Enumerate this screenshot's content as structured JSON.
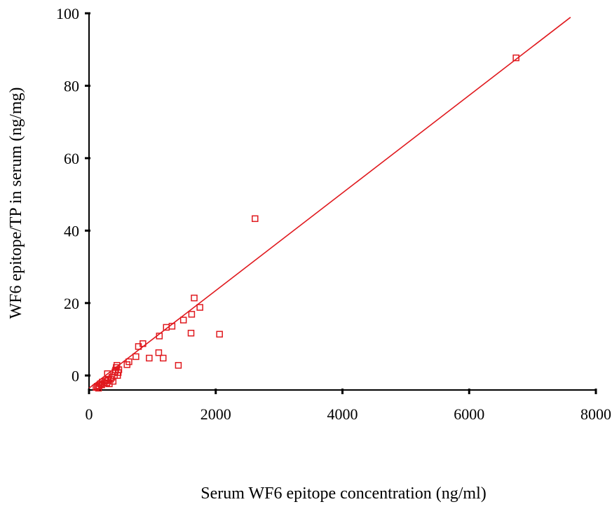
{
  "chart_data": {
    "type": "scatter",
    "title": "",
    "xlabel": "Serum WF6 epitope concentration (ng/ml)",
    "ylabel": "WF6 epitope/TP in serum (ng/mg)",
    "xlim": [
      0,
      8000
    ],
    "ylim": [
      -4,
      100
    ],
    "xticks": [
      0,
      2000,
      4000,
      6000,
      8000
    ],
    "yticks": [
      0,
      20,
      40,
      60,
      80,
      100
    ],
    "grid": false,
    "legend": "none",
    "marker": "open-square",
    "color": "#e0191e",
    "points": [
      {
        "x": 110,
        "y": -3.3
      },
      {
        "x": 130,
        "y": -3.0
      },
      {
        "x": 150,
        "y": -3.5
      },
      {
        "x": 160,
        "y": -2.8
      },
      {
        "x": 180,
        "y": -2.3
      },
      {
        "x": 200,
        "y": -2.6
      },
      {
        "x": 210,
        "y": -1.8
      },
      {
        "x": 240,
        "y": -2.2
      },
      {
        "x": 260,
        "y": -1.5
      },
      {
        "x": 280,
        "y": -2.0
      },
      {
        "x": 290,
        "y": 0.5
      },
      {
        "x": 300,
        "y": -1.3
      },
      {
        "x": 320,
        "y": -2.3
      },
      {
        "x": 340,
        "y": -1.0
      },
      {
        "x": 360,
        "y": -0.5
      },
      {
        "x": 380,
        "y": -1.6
      },
      {
        "x": 400,
        "y": 0.0
      },
      {
        "x": 410,
        "y": 1.0
      },
      {
        "x": 420,
        "y": 1.5
      },
      {
        "x": 430,
        "y": 2.2
      },
      {
        "x": 440,
        "y": 2.8
      },
      {
        "x": 450,
        "y": 0.0
      },
      {
        "x": 460,
        "y": 0.8
      },
      {
        "x": 470,
        "y": 1.6
      },
      {
        "x": 600,
        "y": 3.0
      },
      {
        "x": 630,
        "y": 3.8
      },
      {
        "x": 740,
        "y": 5.2
      },
      {
        "x": 780,
        "y": 8.0
      },
      {
        "x": 850,
        "y": 8.8
      },
      {
        "x": 950,
        "y": 4.8
      },
      {
        "x": 1100,
        "y": 6.3
      },
      {
        "x": 1110,
        "y": 10.9
      },
      {
        "x": 1170,
        "y": 4.8
      },
      {
        "x": 1220,
        "y": 13.3
      },
      {
        "x": 1310,
        "y": 13.6
      },
      {
        "x": 1410,
        "y": 2.8
      },
      {
        "x": 1490,
        "y": 15.3
      },
      {
        "x": 1610,
        "y": 11.7
      },
      {
        "x": 1620,
        "y": 16.9
      },
      {
        "x": 1660,
        "y": 21.4
      },
      {
        "x": 1750,
        "y": 18.8
      },
      {
        "x": 2060,
        "y": 11.4
      },
      {
        "x": 2620,
        "y": 43.3
      },
      {
        "x": 6740,
        "y": 87.7
      }
    ],
    "fit_line": {
      "x": [
        0,
        7600
      ],
      "y": [
        -3.5,
        98.9
      ]
    }
  }
}
